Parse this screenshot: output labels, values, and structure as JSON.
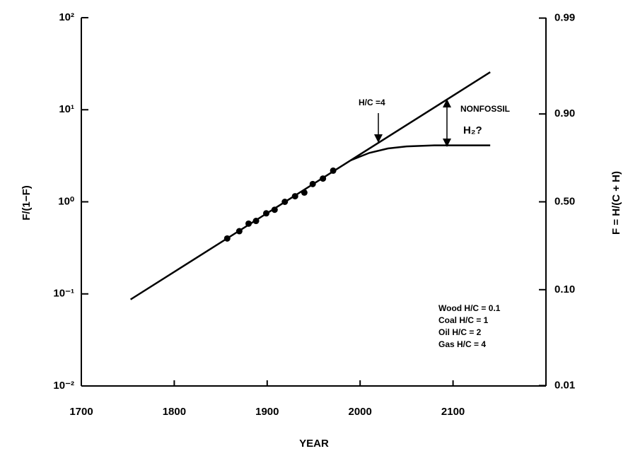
{
  "chart_data": {
    "type": "line",
    "x_label": "YEAR",
    "y_label": "F/(1−F)",
    "y2_label": "F = H/(C + H)",
    "xlim": [
      1700,
      2200
    ],
    "xticks": [
      1700,
      1800,
      1900,
      2000,
      2100
    ],
    "ylim": [
      0.01,
      100
    ],
    "yscale": "log",
    "yticks": [
      {
        "value": 100,
        "label": "10²"
      },
      {
        "value": 10,
        "label": "10¹"
      },
      {
        "value": 1,
        "label": "10⁰"
      },
      {
        "value": 0.1,
        "label": "10⁻¹"
      },
      {
        "value": 0.01,
        "label": "10⁻²"
      }
    ],
    "y2scale": "logit",
    "y2ticks": [
      0.99,
      {
        "value": 0.9,
        "label": "0.90"
      },
      {
        "value": 0.5,
        "label": "0.50"
      },
      {
        "value": 0.1,
        "label": "0.10"
      },
      0.01
    ],
    "series": [
      {
        "kind": "line",
        "color": "#000000",
        "x": [
          1753,
          2140
        ],
        "values": [
          0.087,
          25.6
        ]
      },
      {
        "kind": "line",
        "color": "#000000",
        "x": [
          1990,
          2010,
          2030,
          2050,
          2080,
          2140
        ],
        "values": [
          2.83,
          3.4,
          3.8,
          4.0,
          4.1,
          4.1
        ]
      },
      {
        "kind": "scatter",
        "color": "#000000",
        "x": [
          1857,
          1870,
          1880,
          1888,
          1899,
          1908,
          1919,
          1930,
          1940,
          1949,
          1960,
          1971
        ],
        "values": [
          0.4,
          0.48,
          0.58,
          0.62,
          0.75,
          0.82,
          1.0,
          1.15,
          1.26,
          1.56,
          1.79,
          2.18
        ]
      }
    ],
    "annotations": [
      "H/C =4",
      "NONFOSSIL",
      "H₂?"
    ],
    "notes": [
      "Wood H/C = 0.1",
      "Coal H/C = 1",
      "Oil H/C = 2",
      "Gas H/C = 4"
    ]
  }
}
